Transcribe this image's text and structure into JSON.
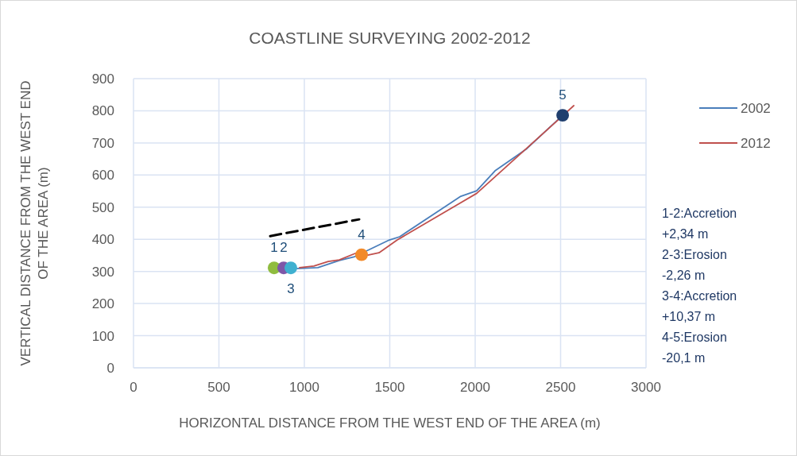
{
  "chart_data": {
    "type": "line",
    "title": "COASTLINE SURVEYING 2002-2012",
    "xlabel": "HORIZONTAL DISTANCE FROM THE WEST END OF THE AREA (m)",
    "ylabel": "VERTICAL DISTANCE FROM THE WEST END OF THE AREA (m)",
    "xlim": [
      0,
      3000
    ],
    "xticks": [
      0,
      500,
      1000,
      1500,
      2000,
      2500,
      3000
    ],
    "ylim": [
      0,
      900
    ],
    "yticks": [
      0,
      100,
      200,
      300,
      400,
      500,
      600,
      700,
      800,
      900
    ],
    "grid": true,
    "legend": "right",
    "line_style": "solid",
    "marker": "none",
    "series": [
      {
        "name": "2002",
        "color": "#4a7ebb",
        "x": [
          949,
          1079,
          1205,
          1290,
          1498,
          1558,
          1916,
          2009,
          2116,
          2302,
          2512
        ],
        "values": [
          309,
          312,
          334,
          345,
          398,
          408,
          534,
          551,
          613,
          682,
          786
        ]
      },
      {
        "name": "2012",
        "color": "#c0504d",
        "x": [
          972,
          1056,
          1140,
          1205,
          1298,
          1372,
          1437,
          1544,
          2009,
          2474,
          2577
        ],
        "values": [
          312,
          317,
          331,
          336,
          356,
          351,
          358,
          398,
          543,
          766,
          816
        ]
      },
      {
        "type": "line",
        "color": "#000000",
        "line_style": "dashed",
        "x": [
          800,
          1321
        ],
        "values": [
          410,
          462
        ]
      },
      {
        "type": "scatter",
        "marker": "circle",
        "colors": [
          "#8fbc3f",
          "#7e57a8",
          "#3fb0d0",
          "#f28a2a",
          "#1f3e6e"
        ],
        "x": [
          823,
          879,
          921,
          1335,
          2512
        ],
        "values": [
          311,
          311,
          311,
          352,
          786
        ]
      }
    ],
    "annotations": [
      {
        "text": "1",
        "x": 823,
        "y": 311
      },
      {
        "text": "2",
        "x": 879,
        "y": 311
      },
      {
        "text": "3",
        "x": 921,
        "y": 311
      },
      {
        "text": "4",
        "x": 1335,
        "y": 352
      },
      {
        "text": "5",
        "x": 2512,
        "y": 786
      },
      "1-2:Accretion",
      "+2,34 m",
      "2-3:Erosion",
      "-2,26 m",
      "3-4:Accretion",
      "+10,37 m",
      "4-5:Erosion",
      "-20,1 m"
    ]
  }
}
